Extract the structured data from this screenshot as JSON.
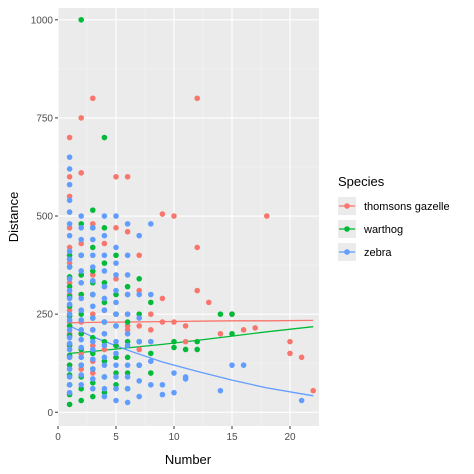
{
  "chart_data": {
    "type": "scatter",
    "xlabel": "Number",
    "ylabel": "Distance",
    "xlim": [
      0,
      22.5
    ],
    "ylim": [
      -35,
      1030
    ],
    "x_ticks": [
      0,
      5,
      10,
      15,
      20
    ],
    "y_ticks": [
      0,
      250,
      500,
      750,
      1000
    ],
    "grid": true,
    "legend": {
      "title": "Species",
      "placement": "right",
      "entries": [
        "thomsons gazelle",
        "warthog",
        "zebra"
      ]
    },
    "colors": {
      "thomsons gazelle": "#F8766D",
      "warthog": "#00BA38",
      "zebra": "#619CFF",
      "panel": "#EBEBEB",
      "grid_major": "#FFFFFF",
      "grid_minor": "#F3F3F3"
    },
    "series": [
      {
        "name": "thomsons gazelle",
        "points": [
          [
            1,
            700
          ],
          [
            1,
            600
          ],
          [
            1,
            550
          ],
          [
            1,
            470
          ],
          [
            1,
            420
          ],
          [
            1,
            380
          ],
          [
            1,
            330
          ],
          [
            1,
            300
          ],
          [
            1,
            260
          ],
          [
            1,
            230
          ],
          [
            1,
            200
          ],
          [
            1,
            170
          ],
          [
            1,
            140
          ],
          [
            1,
            120
          ],
          [
            2,
            750
          ],
          [
            2,
            610
          ],
          [
            2,
            430
          ],
          [
            2,
            350
          ],
          [
            2,
            300
          ],
          [
            2,
            260
          ],
          [
            2,
            230
          ],
          [
            2,
            200
          ],
          [
            2,
            150
          ],
          [
            2,
            110
          ],
          [
            3,
            800
          ],
          [
            3,
            480
          ],
          [
            3,
            350
          ],
          [
            3,
            300
          ],
          [
            3,
            250
          ],
          [
            3,
            210
          ],
          [
            3,
            170
          ],
          [
            3,
            130
          ],
          [
            3,
            100
          ],
          [
            4,
            430
          ],
          [
            4,
            320
          ],
          [
            4,
            260
          ],
          [
            4,
            200
          ],
          [
            4,
            160
          ],
          [
            5,
            600
          ],
          [
            5,
            470
          ],
          [
            5,
            340
          ],
          [
            5,
            250
          ],
          [
            5,
            170
          ],
          [
            5,
            140
          ],
          [
            6,
            600
          ],
          [
            6,
            460
          ],
          [
            6,
            300
          ],
          [
            6,
            250
          ],
          [
            6,
            220
          ],
          [
            6,
            210
          ],
          [
            7,
            400
          ],
          [
            7,
            310
          ],
          [
            7,
            220
          ],
          [
            7,
            160
          ],
          [
            8,
            250
          ],
          [
            8,
            210
          ],
          [
            8,
            180
          ],
          [
            9,
            505
          ],
          [
            9,
            290
          ],
          [
            9,
            230
          ],
          [
            10,
            500
          ],
          [
            10,
            230
          ],
          [
            11,
            220
          ],
          [
            11,
            180
          ],
          [
            12,
            800
          ],
          [
            12,
            420
          ],
          [
            12,
            310
          ],
          [
            13,
            280
          ],
          [
            14,
            200
          ],
          [
            15,
            250
          ],
          [
            16,
            210
          ],
          [
            17,
            215
          ],
          [
            18,
            500
          ],
          [
            20,
            180
          ],
          [
            20,
            150
          ],
          [
            21,
            140
          ],
          [
            22,
            55
          ]
        ],
        "trend": [
          [
            1,
            228
          ],
          [
            3,
            229
          ],
          [
            6,
            230
          ],
          [
            9,
            231
          ],
          [
            12,
            232
          ],
          [
            15,
            233
          ],
          [
            18,
            233
          ],
          [
            22,
            234
          ]
        ]
      },
      {
        "name": "warthog",
        "points": [
          [
            1,
            400
          ],
          [
            1,
            370
          ],
          [
            1,
            345
          ],
          [
            1,
            320
          ],
          [
            1,
            295
          ],
          [
            1,
            270
          ],
          [
            1,
            245
          ],
          [
            1,
            220
          ],
          [
            1,
            195
          ],
          [
            1,
            170
          ],
          [
            1,
            145
          ],
          [
            1,
            120
          ],
          [
            1,
            95
          ],
          [
            1,
            70
          ],
          [
            1,
            45
          ],
          [
            1,
            20
          ],
          [
            2,
            1000
          ],
          [
            2,
            480
          ],
          [
            2,
            400
          ],
          [
            2,
            350
          ],
          [
            2,
            300
          ],
          [
            2,
            250
          ],
          [
            2,
            200
          ],
          [
            2,
            160
          ],
          [
            2,
            120
          ],
          [
            2,
            90
          ],
          [
            2,
            60
          ],
          [
            2,
            30
          ],
          [
            3,
            515
          ],
          [
            3,
            470
          ],
          [
            3,
            420
          ],
          [
            3,
            360
          ],
          [
            3,
            330
          ],
          [
            3,
            300
          ],
          [
            3,
            240
          ],
          [
            3,
            190
          ],
          [
            3,
            150
          ],
          [
            3,
            110
          ],
          [
            3,
            75
          ],
          [
            3,
            40
          ],
          [
            4,
            700
          ],
          [
            4,
            470
          ],
          [
            4,
            380
          ],
          [
            4,
            330
          ],
          [
            4,
            280
          ],
          [
            4,
            230
          ],
          [
            4,
            180
          ],
          [
            4,
            130
          ],
          [
            4,
            90
          ],
          [
            4,
            50
          ],
          [
            5,
            400
          ],
          [
            5,
            300
          ],
          [
            5,
            250
          ],
          [
            5,
            220
          ],
          [
            5,
            170
          ],
          [
            5,
            140
          ],
          [
            5,
            100
          ],
          [
            5,
            70
          ],
          [
            6,
            320
          ],
          [
            6,
            230
          ],
          [
            6,
            180
          ],
          [
            6,
            140
          ],
          [
            6,
            100
          ],
          [
            6,
            60
          ],
          [
            7,
            340
          ],
          [
            7,
            250
          ],
          [
            7,
            180
          ],
          [
            7,
            120
          ],
          [
            8,
            280
          ],
          [
            8,
            150
          ],
          [
            8,
            100
          ],
          [
            10,
            180
          ],
          [
            10,
            165
          ],
          [
            11,
            160
          ],
          [
            12,
            180
          ],
          [
            12,
            160
          ],
          [
            14,
            250
          ],
          [
            15,
            250
          ],
          [
            15,
            200
          ]
        ],
        "trend": [
          [
            1,
            150
          ],
          [
            3,
            155
          ],
          [
            6,
            164
          ],
          [
            9,
            173
          ],
          [
            12,
            183
          ],
          [
            15,
            194
          ],
          [
            18,
            205
          ],
          [
            22,
            218
          ]
        ]
      },
      {
        "name": "zebra",
        "points": [
          [
            1,
            650
          ],
          [
            1,
            620
          ],
          [
            1,
            580
          ],
          [
            1,
            540
          ],
          [
            1,
            510
          ],
          [
            1,
            480
          ],
          [
            1,
            450
          ],
          [
            1,
            410
          ],
          [
            1,
            390
          ],
          [
            1,
            370
          ],
          [
            1,
            340
          ],
          [
            1,
            310
          ],
          [
            1,
            290
          ],
          [
            1,
            275
          ],
          [
            1,
            250
          ],
          [
            1,
            235
          ],
          [
            1,
            210
          ],
          [
            1,
            190
          ],
          [
            1,
            175
          ],
          [
            1,
            160
          ],
          [
            1,
            140
          ],
          [
            1,
            110
          ],
          [
            1,
            90
          ],
          [
            1,
            70
          ],
          [
            1,
            50
          ],
          [
            2,
            500
          ],
          [
            2,
            470
          ],
          [
            2,
            440
          ],
          [
            2,
            400
          ],
          [
            2,
            360
          ],
          [
            2,
            330
          ],
          [
            2,
            290
          ],
          [
            2,
            260
          ],
          [
            2,
            235
          ],
          [
            2,
            210
          ],
          [
            2,
            185
          ],
          [
            2,
            165
          ],
          [
            2,
            140
          ],
          [
            2,
            120
          ],
          [
            2,
            95
          ],
          [
            2,
            70
          ],
          [
            3,
            470
          ],
          [
            3,
            440
          ],
          [
            3,
            400
          ],
          [
            3,
            370
          ],
          [
            3,
            335
          ],
          [
            3,
            300
          ],
          [
            3,
            270
          ],
          [
            3,
            240
          ],
          [
            3,
            210
          ],
          [
            3,
            180
          ],
          [
            3,
            160
          ],
          [
            3,
            135
          ],
          [
            3,
            110
          ],
          [
            3,
            85
          ],
          [
            3,
            60
          ],
          [
            4,
            500
          ],
          [
            4,
            450
          ],
          [
            4,
            400
          ],
          [
            4,
            360
          ],
          [
            4,
            320
          ],
          [
            4,
            290
          ],
          [
            4,
            260
          ],
          [
            4,
            230
          ],
          [
            4,
            200
          ],
          [
            4,
            170
          ],
          [
            4,
            140
          ],
          [
            4,
            120
          ],
          [
            4,
            90
          ],
          [
            4,
            60
          ],
          [
            4,
            40
          ],
          [
            5,
            500
          ],
          [
            5,
            420
          ],
          [
            5,
            380
          ],
          [
            5,
            350
          ],
          [
            5,
            310
          ],
          [
            5,
            280
          ],
          [
            5,
            250
          ],
          [
            5,
            220
          ],
          [
            5,
            180
          ],
          [
            5,
            150
          ],
          [
            5,
            120
          ],
          [
            5,
            90
          ],
          [
            5,
            60
          ],
          [
            5,
            30
          ],
          [
            6,
            480
          ],
          [
            6,
            400
          ],
          [
            6,
            350
          ],
          [
            6,
            300
          ],
          [
            6,
            250
          ],
          [
            6,
            200
          ],
          [
            6,
            170
          ],
          [
            6,
            120
          ],
          [
            6,
            90
          ],
          [
            6,
            60
          ],
          [
            6,
            25
          ],
          [
            7,
            450
          ],
          [
            7,
            300
          ],
          [
            7,
            240
          ],
          [
            7,
            180
          ],
          [
            7,
            120
          ],
          [
            7,
            80
          ],
          [
            7,
            40
          ],
          [
            8,
            480
          ],
          [
            8,
            300
          ],
          [
            8,
            180
          ],
          [
            8,
            130
          ],
          [
            8,
            70
          ],
          [
            9,
            70
          ],
          [
            9,
            45
          ],
          [
            10,
            100
          ],
          [
            10,
            50
          ],
          [
            11,
            90
          ],
          [
            11,
            85
          ],
          [
            14,
            55
          ],
          [
            15,
            120
          ],
          [
            16,
            120
          ],
          [
            21,
            30
          ]
        ],
        "trend": [
          [
            1,
            220
          ],
          [
            3,
            192
          ],
          [
            6,
            158
          ],
          [
            9,
            128
          ],
          [
            12,
            104
          ],
          [
            15,
            82
          ],
          [
            18,
            62
          ],
          [
            22,
            42
          ]
        ]
      }
    ]
  }
}
